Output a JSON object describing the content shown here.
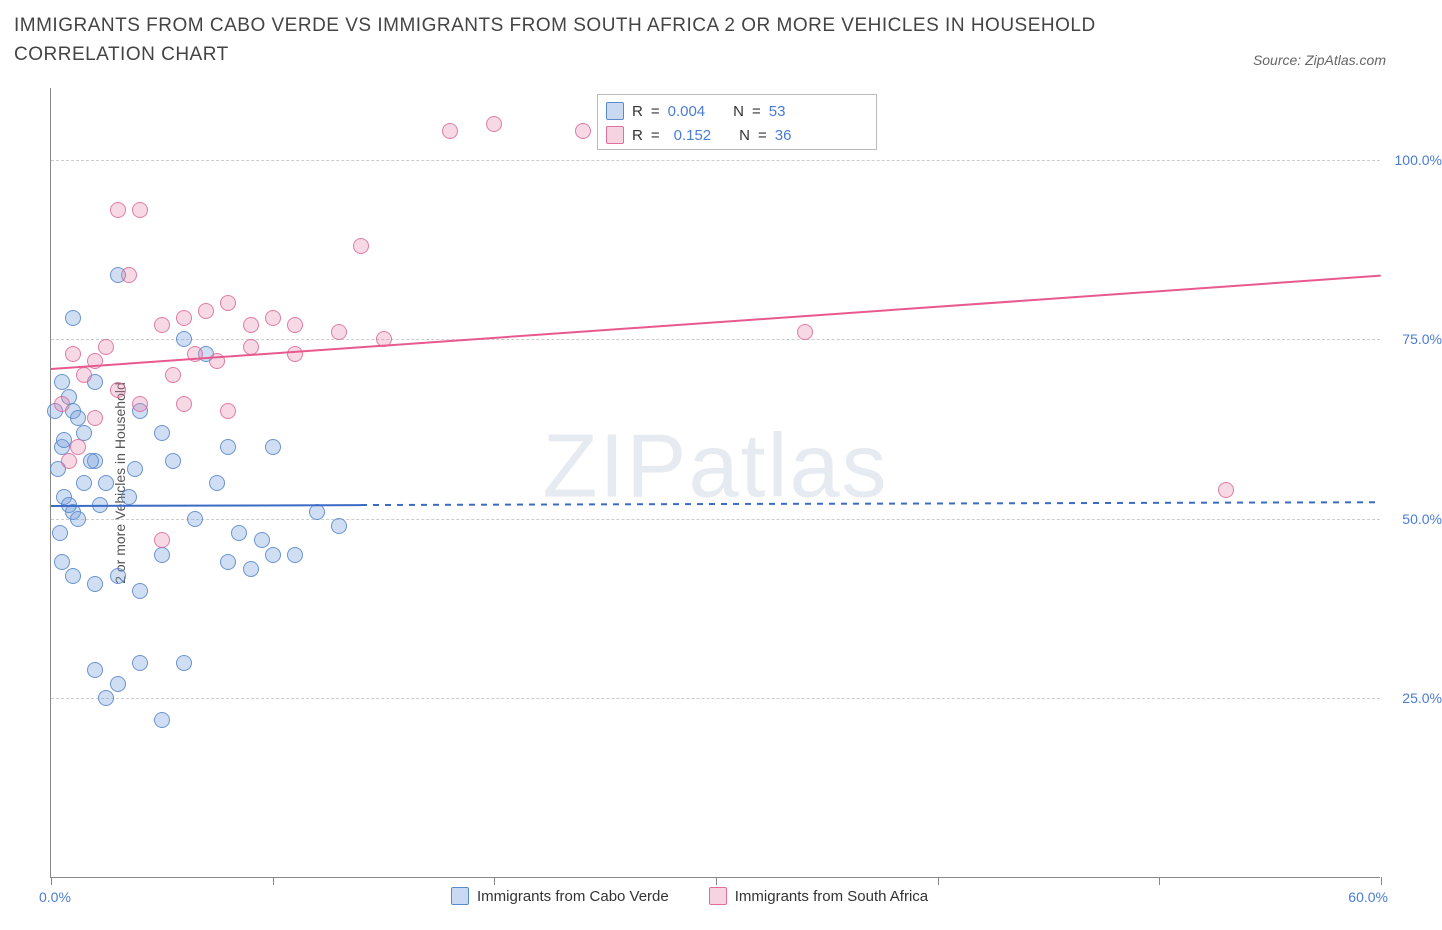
{
  "title": "IMMIGRANTS FROM CABO VERDE VS IMMIGRANTS FROM SOUTH AFRICA 2 OR MORE VEHICLES IN HOUSEHOLD CORRELATION CHART",
  "source": "Source: ZipAtlas.com",
  "watermark": "ZIPatlas",
  "chart": {
    "type": "scatter",
    "y_axis_title": "2 or more Vehicles in Household",
    "xlim": [
      0,
      60
    ],
    "ylim": [
      0,
      110
    ],
    "x_min_label": "0.0%",
    "x_max_label": "60.0%",
    "y_gridlines": [
      25,
      50,
      75,
      100
    ],
    "y_labels": [
      "25.0%",
      "50.0%",
      "75.0%",
      "100.0%"
    ],
    "x_ticks": [
      0,
      10,
      20,
      30,
      40,
      50,
      60
    ],
    "background_color": "#ffffff",
    "grid_color": "#cccccc",
    "series": [
      {
        "name": "Immigrants from Cabo Verde",
        "color_fill": "rgba(120,160,220,0.35)",
        "color_stroke": "#5082c8",
        "R": "0.004",
        "N": "53",
        "trend": {
          "x1": 0,
          "y1": 52,
          "x2": 60,
          "y2": 52.5,
          "solid_until_x": 14
        },
        "points": [
          [
            1,
            78
          ],
          [
            0.5,
            69
          ],
          [
            0.8,
            67
          ],
          [
            1,
            65
          ],
          [
            2,
            69
          ],
          [
            1.2,
            64
          ],
          [
            0.5,
            60
          ],
          [
            1.5,
            62
          ],
          [
            2,
            58
          ],
          [
            2.5,
            55
          ],
          [
            0.3,
            57
          ],
          [
            0.6,
            53
          ],
          [
            1,
            51
          ],
          [
            1.2,
            50
          ],
          [
            0.4,
            48
          ],
          [
            3,
            84
          ],
          [
            5,
            62
          ],
          [
            4,
            65
          ],
          [
            6,
            75
          ],
          [
            7,
            73
          ],
          [
            8,
            60
          ],
          [
            10,
            60
          ],
          [
            12,
            51
          ],
          [
            13,
            49
          ],
          [
            5,
            45
          ],
          [
            8,
            44
          ],
          [
            9,
            43
          ],
          [
            10,
            45
          ],
          [
            1,
            42
          ],
          [
            2,
            41
          ],
          [
            3,
            42
          ],
          [
            4,
            40
          ],
          [
            11,
            45
          ],
          [
            2,
            29
          ],
          [
            4,
            30
          ],
          [
            3,
            27
          ],
          [
            5,
            22
          ],
          [
            2.5,
            25
          ],
          [
            6,
            30
          ],
          [
            0.5,
            44
          ],
          [
            1.5,
            55
          ],
          [
            0.8,
            52
          ],
          [
            2.2,
            52
          ],
          [
            3.5,
            53
          ],
          [
            7.5,
            55
          ],
          [
            9.5,
            47
          ],
          [
            0.2,
            65
          ],
          [
            0.6,
            61
          ],
          [
            1.8,
            58
          ],
          [
            3.8,
            57
          ],
          [
            5.5,
            58
          ],
          [
            6.5,
            50
          ],
          [
            8.5,
            48
          ]
        ]
      },
      {
        "name": "Immigrants from South Africa",
        "color_fill": "rgba(230,130,170,0.3)",
        "color_stroke": "#dc6496",
        "R": "0.152",
        "N": "36",
        "trend": {
          "x1": 0,
          "y1": 71,
          "x2": 60,
          "y2": 84
        },
        "points": [
          [
            3,
            93
          ],
          [
            4,
            93
          ],
          [
            3.5,
            84
          ],
          [
            18,
            104
          ],
          [
            20,
            105
          ],
          [
            24,
            104
          ],
          [
            14,
            88
          ],
          [
            5,
            77
          ],
          [
            6,
            78
          ],
          [
            7,
            79
          ],
          [
            8,
            80
          ],
          [
            9,
            77
          ],
          [
            10,
            78
          ],
          [
            11,
            77
          ],
          [
            13,
            76
          ],
          [
            15,
            75
          ],
          [
            7.5,
            72
          ],
          [
            5.5,
            70
          ],
          [
            2,
            72
          ],
          [
            2.5,
            74
          ],
          [
            1,
            73
          ],
          [
            1.5,
            70
          ],
          [
            3,
            68
          ],
          [
            4,
            66
          ],
          [
            6,
            66
          ],
          [
            8,
            65
          ],
          [
            2,
            64
          ],
          [
            0.5,
            66
          ],
          [
            1.2,
            60
          ],
          [
            0.8,
            58
          ],
          [
            5,
            47
          ],
          [
            34,
            76
          ],
          [
            53,
            54
          ],
          [
            9,
            74
          ],
          [
            11,
            73
          ],
          [
            6.5,
            73
          ]
        ]
      }
    ],
    "legend_bottom": [
      {
        "swatch": "blue",
        "label": "Immigrants from Cabo Verde"
      },
      {
        "swatch": "pink",
        "label": "Immigrants from South Africa"
      }
    ]
  }
}
